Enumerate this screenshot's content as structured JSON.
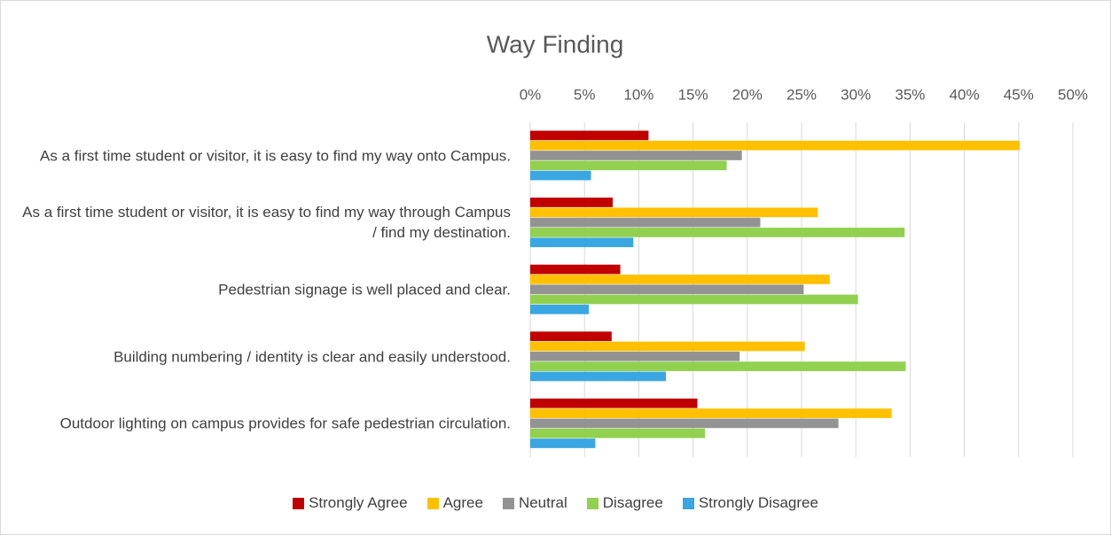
{
  "chart_data": {
    "type": "hbar",
    "title": "Way Finding",
    "categories": [
      "As a first time student or visitor, it is easy to find my way onto Campus.",
      "As a first time student or visitor, it is easy to find my way through Campus / find my destination.",
      "Pedestrian signage is well placed and clear.",
      "Building numbering / identity is clear and easily understood.",
      "Outdoor lighting on campus provides for safe pedestrian circulation."
    ],
    "series": [
      {
        "name": "Strongly Agree",
        "color": "#c00000",
        "values": [
          10.9,
          7.6,
          8.3,
          7.5,
          15.4
        ]
      },
      {
        "name": "Agree",
        "color": "#ffc000",
        "values": [
          45.1,
          26.5,
          27.6,
          25.3,
          33.3
        ]
      },
      {
        "name": "Neutral",
        "color": "#939393",
        "values": [
          19.5,
          21.2,
          25.2,
          19.3,
          28.4
        ]
      },
      {
        "name": "Disagree",
        "color": "#92d050",
        "values": [
          18.1,
          34.5,
          30.2,
          34.6,
          16.1
        ]
      },
      {
        "name": "Strongly Disagree",
        "color": "#3aa6e2",
        "values": [
          5.6,
          9.5,
          5.4,
          12.5,
          6.0
        ]
      }
    ],
    "xlim": [
      0,
      50
    ],
    "xticks": [
      {
        "value": 0,
        "label": "0%"
      },
      {
        "value": 5,
        "label": "5%"
      },
      {
        "value": 10,
        "label": "10%"
      },
      {
        "value": 15,
        "label": "15%"
      },
      {
        "value": 20,
        "label": "20%"
      },
      {
        "value": 25,
        "label": "25%"
      },
      {
        "value": 30,
        "label": "30%"
      },
      {
        "value": 35,
        "label": "35%"
      },
      {
        "value": 40,
        "label": "40%"
      },
      {
        "value": 45,
        "label": "45%"
      },
      {
        "value": 50,
        "label": "50%"
      }
    ],
    "grid": true,
    "legend": "bottom"
  }
}
